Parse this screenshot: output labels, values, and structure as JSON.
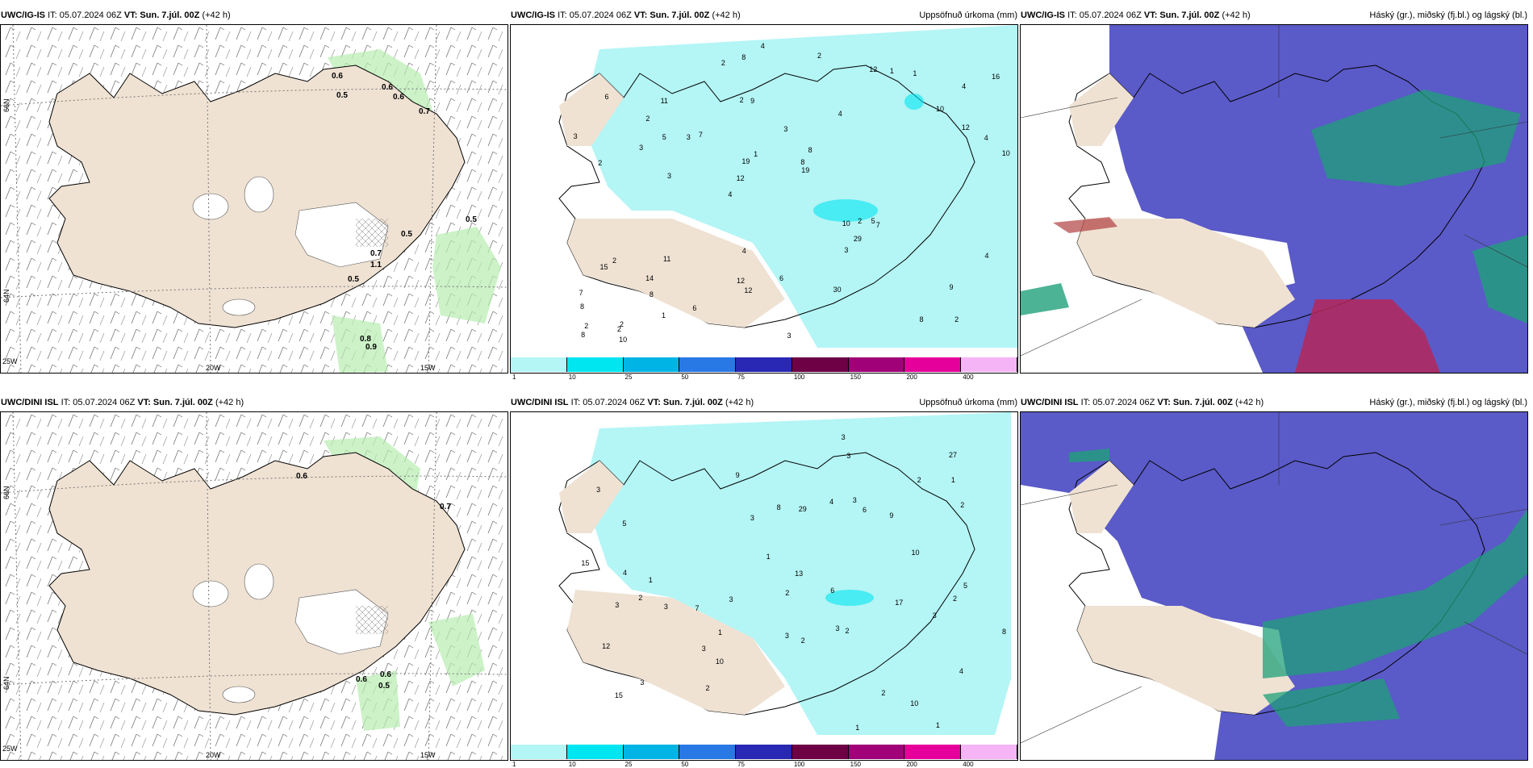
{
  "row1": {
    "panel_wind": {
      "source": "UWC/IG-IS",
      "it": "IT: 05.07.2024 06Z",
      "vt": "VT: Sun. 7.júl. 00Z",
      "lead": "(+42 h)",
      "title_right": ""
    },
    "panel_precip": {
      "source": "UWC/IG-IS",
      "it": "IT: 05.07.2024 06Z",
      "vt": "VT: Sun. 7.júl. 00Z",
      "lead": "(+42 h)",
      "title_right": "Uppsöfnuð úrkoma (mm)"
    },
    "panel_cloud": {
      "source": "UWC/IG-IS",
      "it": "IT: 05.07.2024 06Z",
      "vt": "VT: Sun. 7.júl. 00Z",
      "lead": "(+42 h)",
      "title_right": "Háský (gr.), miðský (fj.bl.) og lágský (bl.)"
    }
  },
  "row2": {
    "panel_wind": {
      "source": "UWC/DINI ISL",
      "it": "IT: 05.07.2024 06Z",
      "vt": "VT: Sun. 7.júl. 00Z",
      "lead": "(+42 h)",
      "title_right": ""
    },
    "panel_precip": {
      "source": "UWC/DINI ISL",
      "it": "IT: 05.07.2024 06Z",
      "vt": "VT: Sun. 7.júl. 00Z",
      "lead": "(+42 h)",
      "title_right": "Uppsöfnuð úrkoma (mm)"
    },
    "panel_cloud": {
      "source": "UWC/DINI ISL",
      "it": "IT: 05.07.2024 06Z",
      "vt": "VT: Sun. 7.júl. 00Z",
      "lead": "(+42 h)",
      "title_right": "Háský (gr.), miðský (fj.bl.) og lágský (bl.)"
    }
  },
  "axes": {
    "lat_66": "66N",
    "lat_64": "64N",
    "lon_25": "25W",
    "lon_20": "20W",
    "lon_15": "15W"
  },
  "colorbar": {
    "ticks": [
      "1",
      "10",
      "25",
      "50",
      "75",
      "100",
      "150",
      "200",
      "400"
    ],
    "colors": [
      "#b4f5f5",
      "#00e6f0",
      "#00b4e6",
      "#2878e6",
      "#2828b4",
      "#6e0046",
      "#a00078",
      "#e6009b",
      "#f5b4f5"
    ]
  },
  "wind_labels_row1": [
    "0.6",
    "0.5",
    "0.6",
    "0.6",
    "0.7",
    "0.5",
    "0.5",
    "0.7",
    "1.1",
    "0.5",
    "0.8",
    "0.9"
  ],
  "wind_labels_row2": [
    "0.6",
    "0.7",
    "0.6",
    "0.6",
    "0.5"
  ],
  "precip_numbers_row1": [
    "2",
    "2",
    "4",
    "4",
    "4",
    "2",
    "2",
    "3",
    "2",
    "7",
    "8",
    "8",
    "9",
    "8",
    "7",
    "6",
    "8",
    "10",
    "10",
    "12",
    "12",
    "12",
    "19",
    "11",
    "12",
    "11",
    "8",
    "9",
    "5",
    "3",
    "3",
    "3",
    "3",
    "1",
    "4",
    "8",
    "2",
    "12",
    "19",
    "15",
    "10",
    "16",
    "29",
    "30",
    "14",
    "10",
    "8",
    "6",
    "1",
    "4",
    "3",
    "3",
    "2",
    "1",
    "2",
    "2",
    "2",
    "1",
    "4",
    "4",
    "6",
    "2",
    "5",
    "7"
  ],
  "precip_numbers_row2": [
    "1",
    "2",
    "3",
    "3",
    "4",
    "5",
    "3",
    "7",
    "9",
    "8",
    "6",
    "10",
    "10",
    "9",
    "6",
    "12",
    "17",
    "13",
    "15",
    "15",
    "27",
    "29",
    "10",
    "8",
    "5",
    "4",
    "3",
    "2",
    "1",
    "1",
    "2",
    "3",
    "3",
    "3",
    "3",
    "3",
    "2",
    "2",
    "2",
    "1",
    "1",
    "2",
    "2",
    "3",
    "3",
    "1",
    "2",
    "3",
    "4",
    "3"
  ]
}
